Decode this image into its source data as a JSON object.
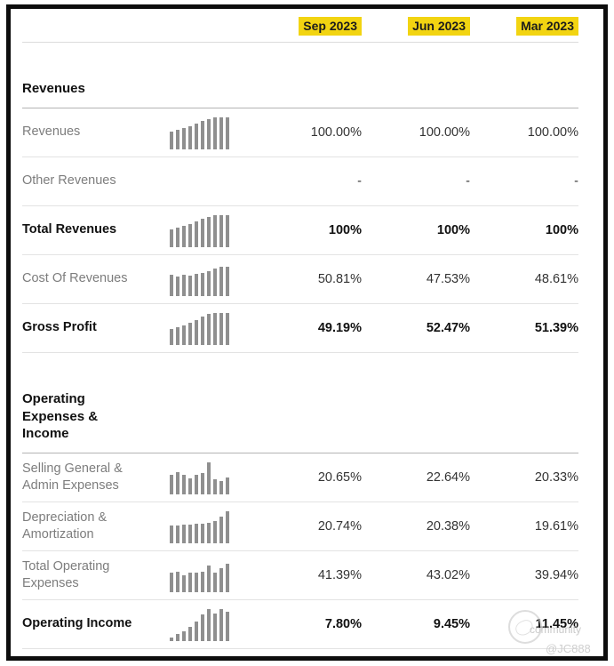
{
  "table": {
    "header": {
      "columns": [
        "Sep 2023",
        "Jun 2023",
        "Mar 2023"
      ],
      "highlight_color": "#f2d411"
    },
    "sections": [
      {
        "title": "Revenues",
        "rows": [
          {
            "label": "Revenues",
            "bold": false,
            "sparkline": [
              0.55,
              0.6,
              0.66,
              0.72,
              0.8,
              0.88,
              0.95,
              1,
              1,
              1
            ],
            "values": [
              "100.00%",
              "100.00%",
              "100.00%"
            ]
          },
          {
            "label": "Other Revenues",
            "bold": false,
            "sparkline": null,
            "values": [
              "-",
              "-",
              "-"
            ]
          },
          {
            "label": "Total Revenues",
            "bold": true,
            "sparkline": [
              0.55,
              0.6,
              0.66,
              0.72,
              0.8,
              0.88,
              0.95,
              1,
              1,
              1
            ],
            "values": [
              "100%",
              "100%",
              "100%"
            ]
          },
          {
            "label": "Cost Of Revenues",
            "bold": false,
            "sparkline": [
              0.66,
              0.62,
              0.66,
              0.63,
              0.7,
              0.73,
              0.78,
              0.85,
              0.92,
              0.92
            ],
            "values": [
              "50.81%",
              "47.53%",
              "48.61%"
            ]
          },
          {
            "label": "Gross Profit",
            "bold": true,
            "sparkline": [
              0.5,
              0.56,
              0.62,
              0.7,
              0.78,
              0.88,
              0.97,
              1,
              1,
              1
            ],
            "values": [
              "49.19%",
              "52.47%",
              "51.39%"
            ]
          }
        ]
      },
      {
        "title": "Operating Expenses & Income",
        "rows": [
          {
            "label": "Selling General & Admin Expenses",
            "bold": false,
            "sparkline": [
              0.62,
              0.7,
              0.62,
              0.5,
              0.6,
              0.68,
              1.0,
              0.46,
              0.42,
              0.52
            ],
            "values": [
              "20.65%",
              "22.64%",
              "20.33%"
            ]
          },
          {
            "label": "Depreciation & Amortization",
            "bold": false,
            "sparkline": [
              0.56,
              0.56,
              0.58,
              0.58,
              0.6,
              0.62,
              0.65,
              0.7,
              0.82,
              1.0
            ],
            "values": [
              "20.74%",
              "20.38%",
              "19.61%"
            ]
          },
          {
            "label": "Total Operating Expenses",
            "bold": false,
            "sparkline": [
              0.6,
              0.64,
              0.52,
              0.6,
              0.62,
              0.63,
              0.82,
              0.6,
              0.74,
              0.88
            ],
            "values": [
              "41.39%",
              "43.02%",
              "39.94%"
            ]
          },
          {
            "label": "Operating Income",
            "bold": true,
            "sparkline": [
              0.12,
              0.22,
              0.3,
              0.45,
              0.62,
              0.82,
              1.0,
              0.85,
              1.0,
              0.92
            ],
            "values": [
              "7.80%",
              "9.45%",
              "11.45%"
            ]
          }
        ]
      }
    ]
  },
  "watermark": {
    "line1": "community",
    "line2": "@JC888"
  },
  "colors": {
    "header_highlight": "#f2d411",
    "frame_border": "#0d0d0d",
    "label_gray": "#7d7d7d",
    "text_dark": "#111111",
    "sparkline_bar": "#8f8f8f",
    "row_separator": "#e3e3e3",
    "section_separator": "#b3b3b3"
  }
}
